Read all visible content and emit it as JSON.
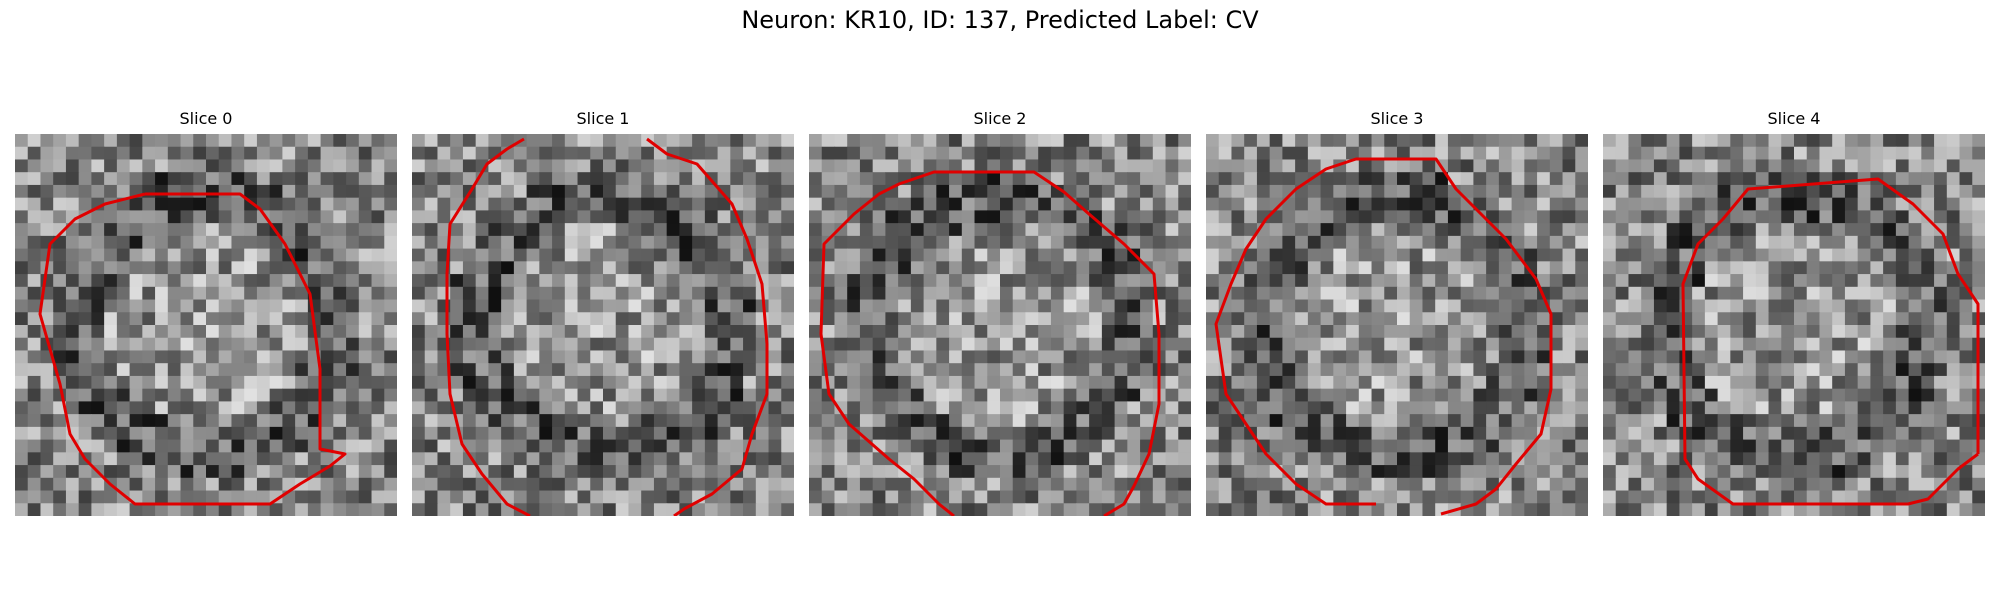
{
  "figure": {
    "title": "Neuron: KR10, ID: 137, Predicted Label: CV",
    "contour_color": "#e00000"
  },
  "panels": [
    {
      "title": "Slice 0"
    },
    {
      "title": "Slice 1"
    },
    {
      "title": "Slice 2"
    },
    {
      "title": "Slice 3"
    },
    {
      "title": "Slice 4"
    }
  ]
}
